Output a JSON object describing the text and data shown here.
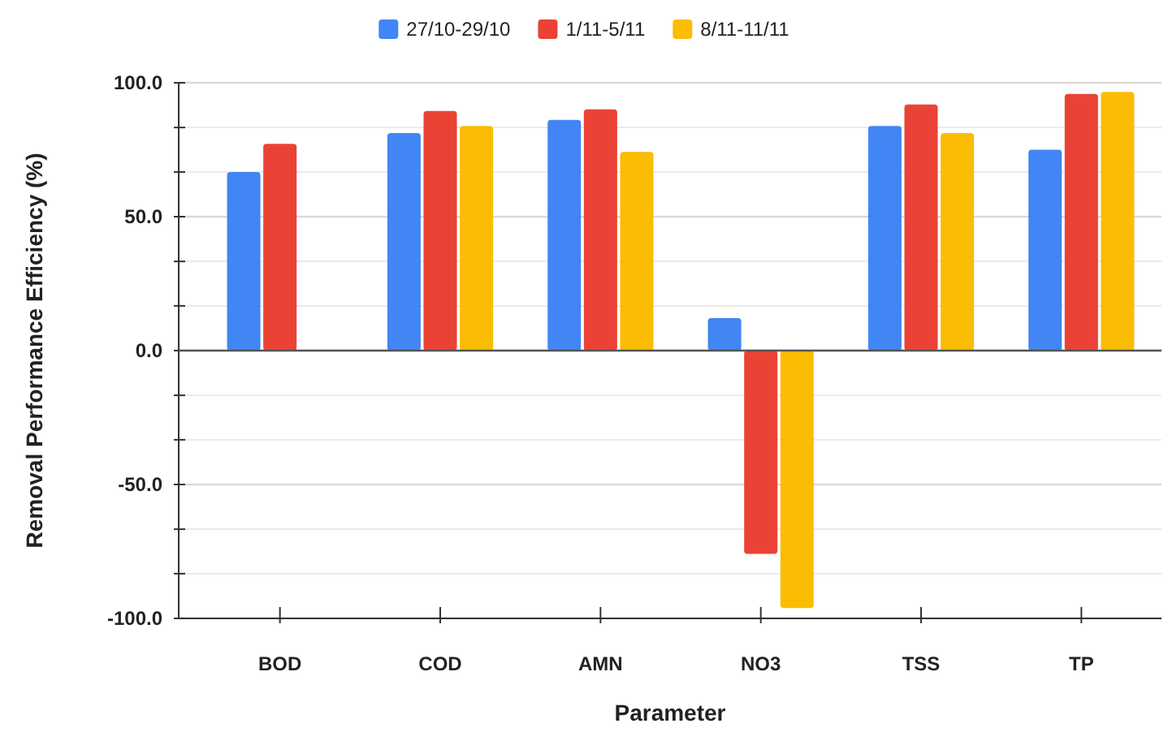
{
  "chart_data": {
    "type": "bar",
    "xlabel": "Parameter",
    "ylabel": "Removal Performance Efficiency (%)",
    "categories": [
      "BOD",
      "COD",
      "AMN",
      "NO3",
      "TSS",
      "TP"
    ],
    "series": [
      {
        "name": "27/10-29/10",
        "color": "#4285f4",
        "values": [
          66.7,
          81.2,
          86.1,
          12.1,
          83.9,
          75.0
        ]
      },
      {
        "name": "1/11-5/11",
        "color": "#ea4335",
        "values": [
          77.2,
          89.5,
          90.1,
          -75.9,
          91.9,
          95.8
        ]
      },
      {
        "name": "8/11-11/11",
        "color": "#fbbc04",
        "values": [
          null,
          83.9,
          74.2,
          -96.1,
          81.2,
          96.6
        ]
      }
    ],
    "ylim": [
      -100,
      100
    ],
    "yticks": [
      {
        "value": -100,
        "label": "-100.0"
      },
      {
        "value": -83.3,
        "label": null
      },
      {
        "value": -66.7,
        "label": null
      },
      {
        "value": -50,
        "label": "-50.0"
      },
      {
        "value": -33.3,
        "label": null
      },
      {
        "value": -16.7,
        "label": null
      },
      {
        "value": 0,
        "label": "0.0"
      },
      {
        "value": 16.7,
        "label": null
      },
      {
        "value": 33.3,
        "label": null
      },
      {
        "value": 50,
        "label": "50.0"
      },
      {
        "value": 66.7,
        "label": null
      },
      {
        "value": 83.3,
        "label": null
      },
      {
        "value": 100,
        "label": "100.0"
      }
    ],
    "grid": "y",
    "legend": "top"
  }
}
